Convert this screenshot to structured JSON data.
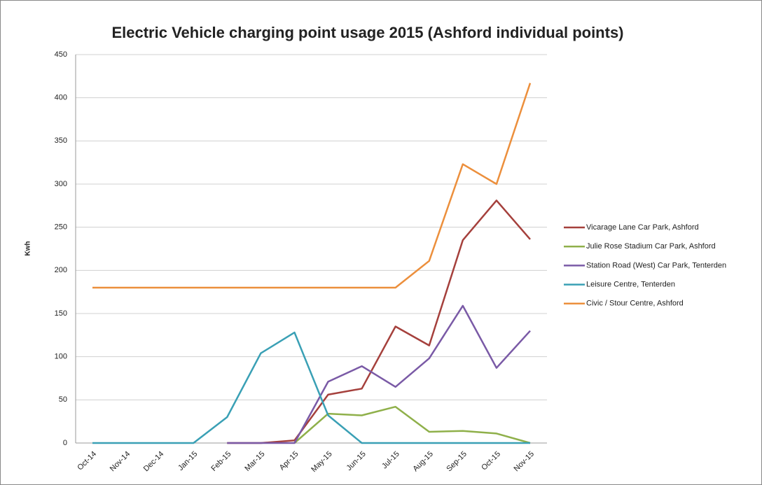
{
  "chart_data": {
    "type": "line",
    "title": "Electric Vehicle charging point usage 2015 (Ashford individual points)",
    "ylabel": "Kwh",
    "categories": [
      "Oct-14",
      "Nov-14",
      "Dec-14",
      "Jan-15",
      "Feb-15",
      "Mar-15",
      "Apr-15",
      "May-15",
      "Jun-15",
      "Jul-15",
      "Aug-15",
      "Sep-15",
      "Oct-15",
      "Nov-15"
    ],
    "series": [
      {
        "name": "Vicarage Lane Car Park, Ashford",
        "color": "#a5403c",
        "values": [
          null,
          null,
          null,
          null,
          0,
          0,
          3,
          56,
          63,
          135,
          113,
          235,
          281,
          236
        ]
      },
      {
        "name": "Julie Rose Stadium Car Park, Ashford",
        "color": "#8fb04a",
        "values": [
          null,
          null,
          null,
          null,
          null,
          null,
          0,
          34,
          32,
          42,
          13,
          14,
          11,
          0
        ]
      },
      {
        "name": "Station Road (West) Car Park, Tenterden",
        "color": "#7a5aa6",
        "values": [
          null,
          null,
          null,
          null,
          0,
          0,
          0,
          71,
          89,
          65,
          98,
          159,
          87,
          130
        ]
      },
      {
        "name": "Leisure Centre, Tenterden",
        "color": "#3aa0b5",
        "values": [
          0,
          0,
          0,
          0,
          30,
          104,
          128,
          32,
          0,
          0,
          0,
          0,
          0,
          0
        ]
      },
      {
        "name": "Civic / Stour Centre, Ashford",
        "color": "#ec8f3c",
        "values": [
          180,
          180,
          180,
          180,
          180,
          180,
          180,
          180,
          180,
          180,
          211,
          323,
          300,
          417
        ]
      }
    ],
    "ylim": [
      0,
      450
    ],
    "yticks": [
      0,
      50,
      100,
      150,
      200,
      250,
      300,
      350,
      400,
      450
    ],
    "grid": true,
    "legend": "right"
  }
}
